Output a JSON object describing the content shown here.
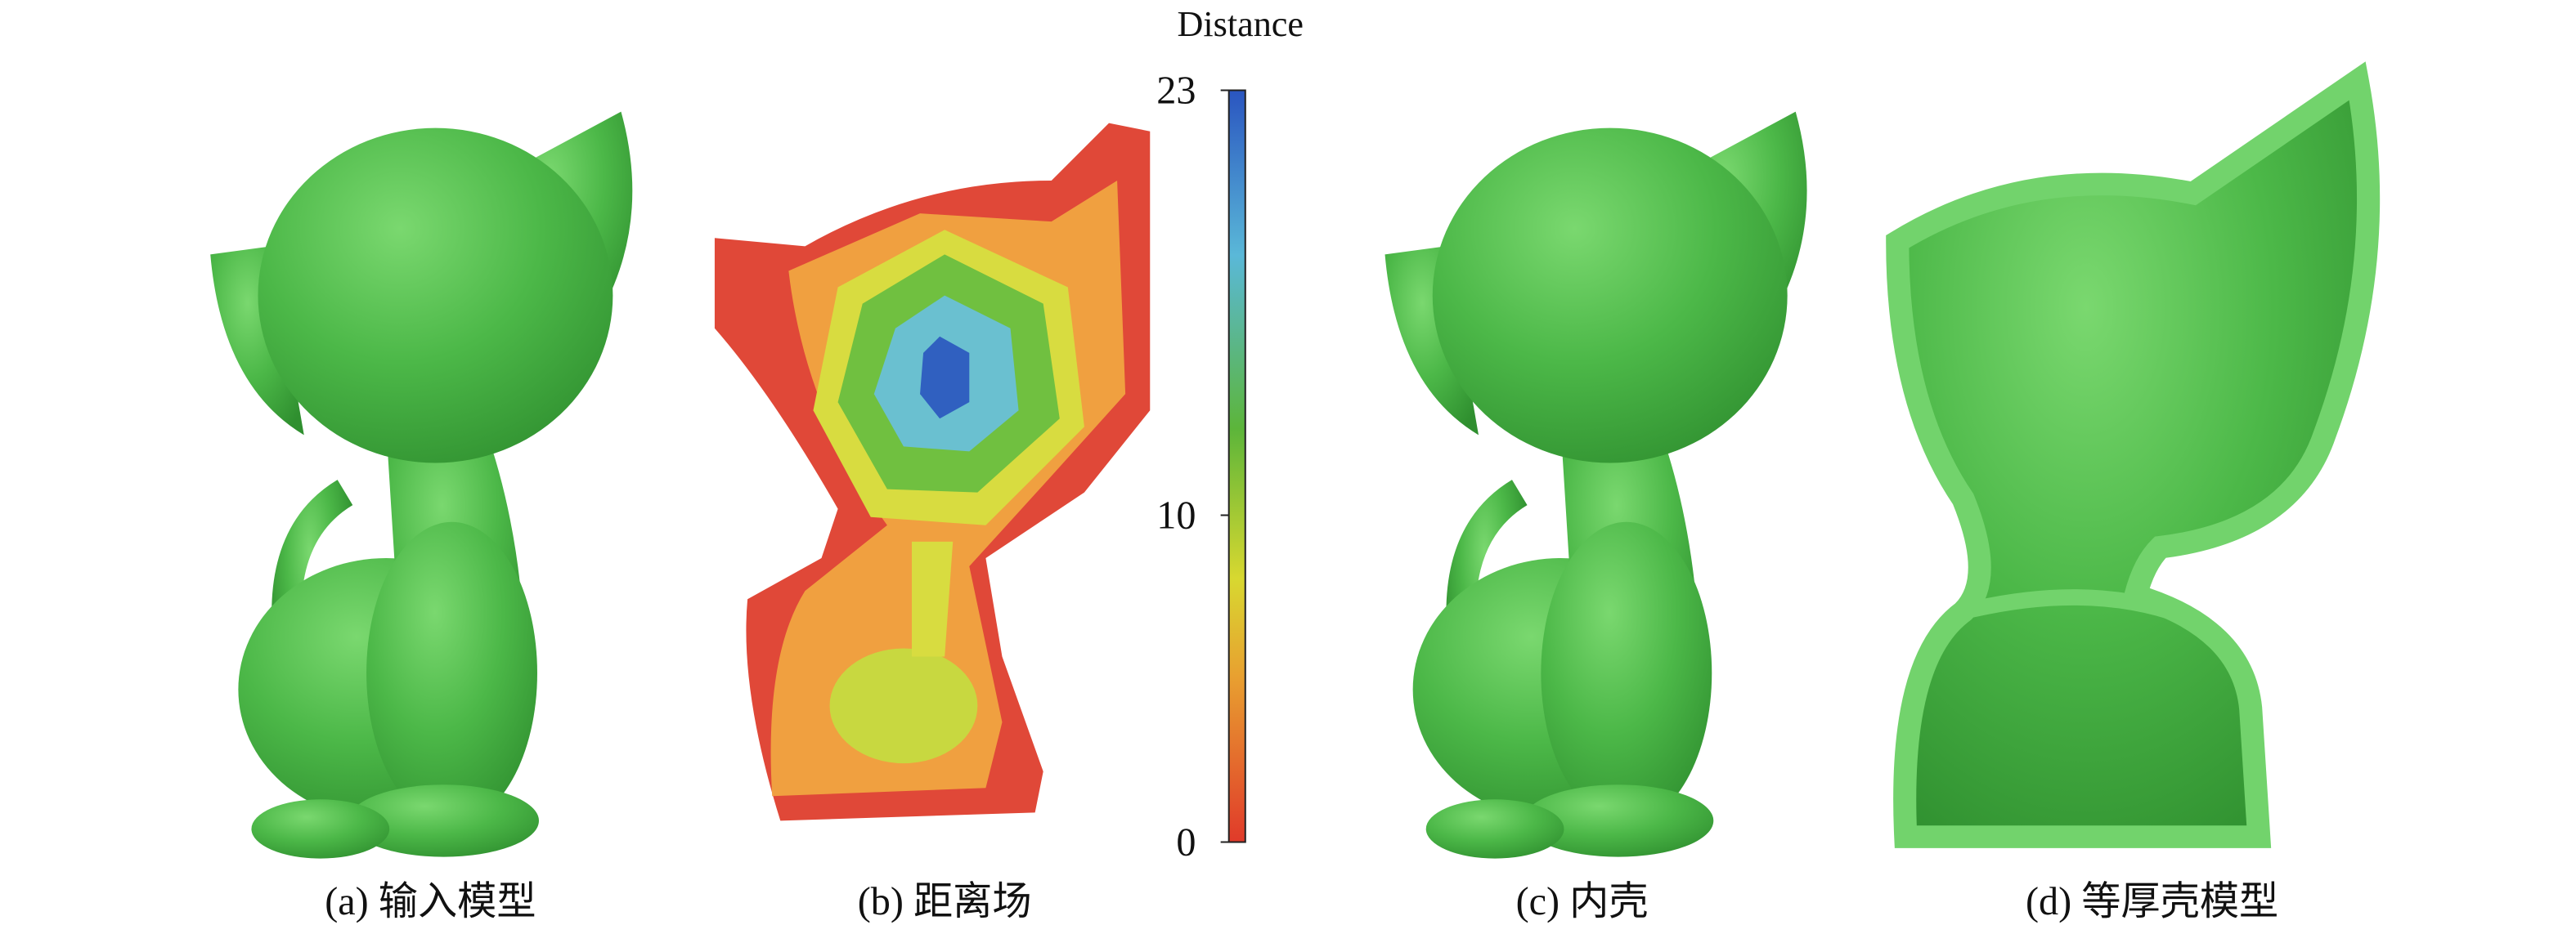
{
  "captions": [
    "(a) 输入模型",
    "(b) 距离场",
    "(c) 内壳",
    "(d) 等厚壳模型"
  ],
  "colorbar": {
    "title": "Distance",
    "lim": [
      0,
      23
    ],
    "ticks": [
      0,
      10,
      23
    ]
  }
}
